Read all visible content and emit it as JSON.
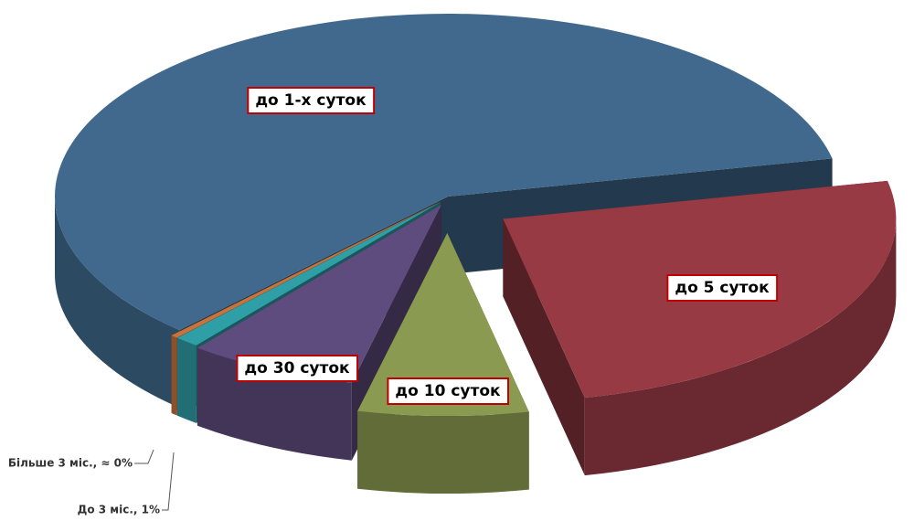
{
  "chart_data": {
    "type": "pie",
    "categories": [
      "до 5 суток",
      "до 10 суток",
      "до 30 суток",
      "До 3 міс., 1%",
      "Більше 3 міс., ≈ 0%",
      "до 1-х суток"
    ],
    "values": [
      25,
      7,
      7,
      1,
      0.3,
      59.7
    ],
    "colors": [
      "#973a44",
      "#8a9a50",
      "#5e4c7e",
      "#2f9fa7",
      "#c8733c",
      "#40698d"
    ]
  }
}
